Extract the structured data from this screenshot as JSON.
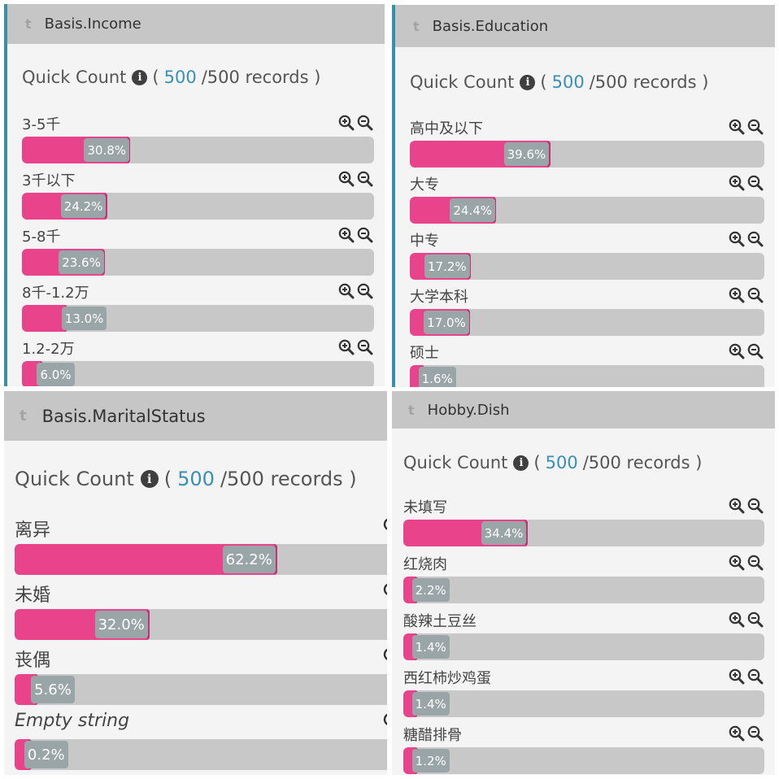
{
  "quick_count_label": "Quick Count",
  "record_count": "500",
  "record_total_text": "/500 records )",
  "open_paren": "(",
  "panels": [
    {
      "title": "Basis.Income",
      "rows": [
        {
          "label": "3-5千",
          "percent": 30.8,
          "text": "30.8%"
        },
        {
          "label": "3千以下",
          "percent": 24.2,
          "text": "24.2%"
        },
        {
          "label": "5-8千",
          "percent": 23.6,
          "text": "23.6%"
        },
        {
          "label": "8千-1.2万",
          "percent": 13.0,
          "text": "13.0%"
        },
        {
          "label": "1.2-2万",
          "percent": 6.0,
          "text": "6.0%"
        }
      ]
    },
    {
      "title": "Basis.Education",
      "rows": [
        {
          "label": "高中及以下",
          "percent": 39.6,
          "text": "39.6%"
        },
        {
          "label": "大专",
          "percent": 24.4,
          "text": "24.4%"
        },
        {
          "label": "中专",
          "percent": 17.2,
          "text": "17.2%"
        },
        {
          "label": "大学本科",
          "percent": 17.0,
          "text": "17.0%"
        },
        {
          "label": "硕士",
          "percent": 1.6,
          "text": "1.6%"
        }
      ]
    },
    {
      "title": "Basis.MaritalStatus",
      "rows": [
        {
          "label": "离异",
          "percent": 62.2,
          "text": "62.2%"
        },
        {
          "label": "未婚",
          "percent": 32.0,
          "text": "32.0%"
        },
        {
          "label": "丧偶",
          "percent": 5.6,
          "text": "5.6%"
        },
        {
          "label": "Empty string",
          "percent": 0.2,
          "text": "0.2%",
          "italic": true
        }
      ]
    },
    {
      "title": "Hobby.Dish",
      "rows": [
        {
          "label": "未填写",
          "percent": 34.4,
          "text": "34.4%"
        },
        {
          "label": "红烧肉",
          "percent": 2.2,
          "text": "2.2%"
        },
        {
          "label": "酸辣土豆丝",
          "percent": 1.4,
          "text": "1.4%"
        },
        {
          "label": "西红柿炒鸡蛋",
          "percent": 1.4,
          "text": "1.4%"
        },
        {
          "label": "糖醋排骨",
          "percent": 1.2,
          "text": "1.2%"
        }
      ]
    }
  ],
  "colors": {
    "accent": "#3a8ea8",
    "fill": "#e9438c",
    "track": "#c8c8c8",
    "header": "#c6c6c6"
  },
  "icons": [
    "zoom-in-icon",
    "zoom-out-icon",
    "info-icon"
  ]
}
